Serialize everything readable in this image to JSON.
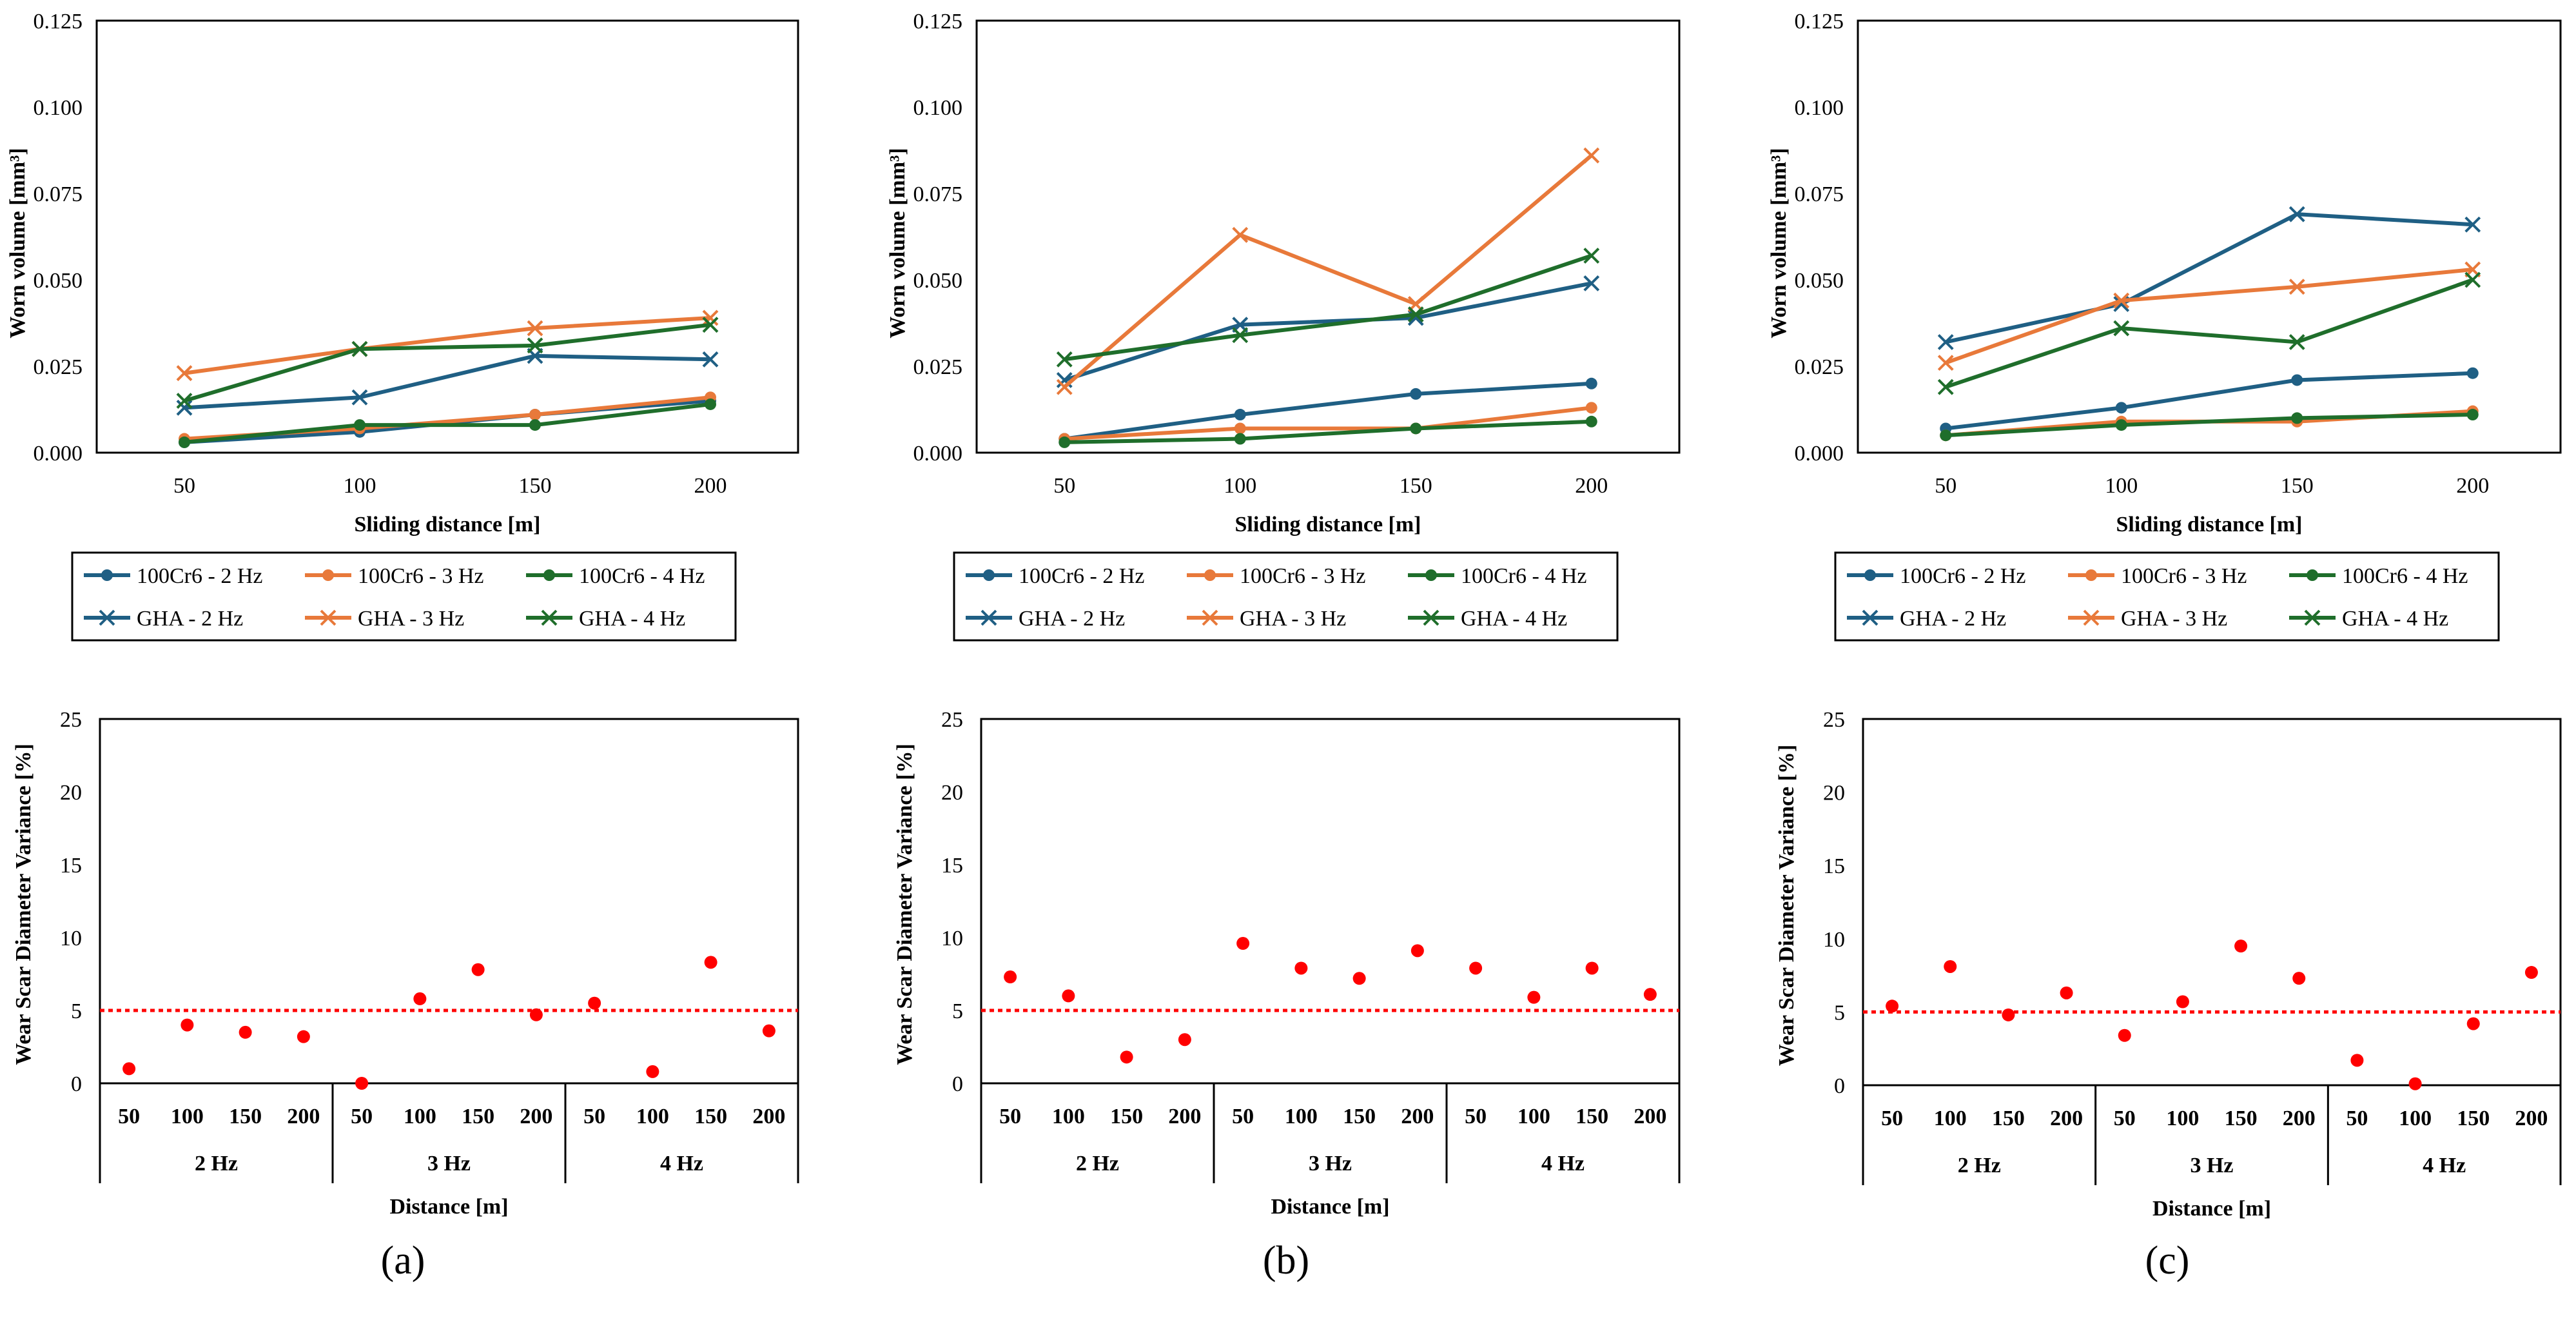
{
  "figure": {
    "panel_labels": [
      "(a)",
      "(b)",
      "(c)"
    ]
  },
  "colors": {
    "2 Hz": "#1f5f84",
    "3 Hz": "#e8793a",
    "4 Hz": "#1f6e2b",
    "scatter_point": "#ff0000",
    "threshold_line": "#ff0000"
  },
  "chart_data": [
    {
      "panel": "a",
      "type": "line",
      "title": "",
      "xlabel": "Sliding distance [m]",
      "ylabel": "Worn volume [mm³]",
      "x": [
        50,
        100,
        150,
        200
      ],
      "ylim": [
        0,
        0.125
      ],
      "yticks": [
        "0.000",
        "0.025",
        "0.050",
        "0.075",
        "0.100",
        "0.125"
      ],
      "series": [
        {
          "name": "100Cr6 - 2 Hz",
          "marker": "dot",
          "freq": "2 Hz",
          "values": [
            0.003,
            0.006,
            0.011,
            0.015
          ]
        },
        {
          "name": "100Cr6 - 3 Hz",
          "marker": "dot",
          "freq": "3 Hz",
          "values": [
            0.004,
            0.007,
            0.011,
            0.016
          ]
        },
        {
          "name": "100Cr6 - 4 Hz",
          "marker": "dot",
          "freq": "4 Hz",
          "values": [
            0.003,
            0.008,
            0.008,
            0.014
          ]
        },
        {
          "name": "GHA - 2 Hz",
          "marker": "x",
          "freq": "2 Hz",
          "values": [
            0.013,
            0.016,
            0.028,
            0.027
          ]
        },
        {
          "name": "GHA - 3 Hz",
          "marker": "x",
          "freq": "3 Hz",
          "values": [
            0.023,
            0.03,
            0.036,
            0.039
          ]
        },
        {
          "name": "GHA - 4 Hz",
          "marker": "x",
          "freq": "4 Hz",
          "values": [
            0.015,
            0.03,
            0.031,
            0.037
          ]
        }
      ]
    },
    {
      "panel": "b",
      "type": "line",
      "title": "",
      "xlabel": "Sliding distance [m]",
      "ylabel": "Worn volume [mm³]",
      "x": [
        50,
        100,
        150,
        200
      ],
      "ylim": [
        0,
        0.125
      ],
      "yticks": [
        "0.000",
        "0.025",
        "0.050",
        "0.075",
        "0.100",
        "0.125"
      ],
      "series": [
        {
          "name": "100Cr6 - 2 Hz",
          "marker": "dot",
          "freq": "2 Hz",
          "values": [
            0.004,
            0.011,
            0.017,
            0.02
          ]
        },
        {
          "name": "100Cr6 - 3 Hz",
          "marker": "dot",
          "freq": "3 Hz",
          "values": [
            0.004,
            0.007,
            0.007,
            0.013
          ]
        },
        {
          "name": "100Cr6 - 4 Hz",
          "marker": "dot",
          "freq": "4 Hz",
          "values": [
            0.003,
            0.004,
            0.007,
            0.009
          ]
        },
        {
          "name": "GHA - 2 Hz",
          "marker": "x",
          "freq": "2 Hz",
          "values": [
            0.021,
            0.037,
            0.039,
            0.049
          ]
        },
        {
          "name": "GHA - 3 Hz",
          "marker": "x",
          "freq": "3 Hz",
          "values": [
            0.019,
            0.063,
            0.043,
            0.086
          ]
        },
        {
          "name": "GHA - 4 Hz",
          "marker": "x",
          "freq": "4 Hz",
          "values": [
            0.027,
            0.034,
            0.04,
            0.057
          ]
        }
      ]
    },
    {
      "panel": "c",
      "type": "line",
      "title": "",
      "xlabel": "Sliding distance [m]",
      "ylabel": "Worn volume [mm³]",
      "x": [
        50,
        100,
        150,
        200
      ],
      "ylim": [
        0,
        0.125
      ],
      "yticks": [
        "0.000",
        "0.025",
        "0.050",
        "0.075",
        "0.100",
        "0.125"
      ],
      "series": [
        {
          "name": "100Cr6 - 2 Hz",
          "marker": "dot",
          "freq": "2 Hz",
          "values": [
            0.007,
            0.013,
            0.021,
            0.023
          ]
        },
        {
          "name": "100Cr6 - 3 Hz",
          "marker": "dot",
          "freq": "3 Hz",
          "values": [
            0.005,
            0.009,
            0.009,
            0.012
          ]
        },
        {
          "name": "100Cr6 - 4 Hz",
          "marker": "dot",
          "freq": "4 Hz",
          "values": [
            0.005,
            0.008,
            0.01,
            0.011
          ]
        },
        {
          "name": "GHA - 2 Hz",
          "marker": "x",
          "freq": "2 Hz",
          "values": [
            0.032,
            0.043,
            0.069,
            0.066
          ]
        },
        {
          "name": "GHA - 3 Hz",
          "marker": "x",
          "freq": "3 Hz",
          "values": [
            0.026,
            0.044,
            0.048,
            0.053
          ]
        },
        {
          "name": "GHA - 4 Hz",
          "marker": "x",
          "freq": "4 Hz",
          "values": [
            0.019,
            0.036,
            0.032,
            0.05
          ]
        }
      ]
    },
    {
      "panel": "a",
      "type": "scatter",
      "title": "",
      "xlabel": "Distance [m]",
      "ylabel": "Wear Scar Diameter Variance [%]",
      "ylim": [
        0,
        25
      ],
      "yticks": [
        "0",
        "5",
        "10",
        "15",
        "20",
        "25"
      ],
      "groups": [
        "2 Hz",
        "3 Hz",
        "4 Hz"
      ],
      "categories": [
        "50",
        "100",
        "150",
        "200"
      ],
      "values": [
        1.0,
        4.0,
        3.5,
        3.2,
        0.0,
        5.8,
        7.8,
        4.7,
        5.5,
        0.8,
        8.3,
        3.6
      ],
      "threshold": 5
    },
    {
      "panel": "b",
      "type": "scatter",
      "title": "",
      "xlabel": "Distance [m]",
      "ylabel": "Wear Scar Diameter Variance [%]",
      "ylim": [
        0,
        25
      ],
      "yticks": [
        "0",
        "5",
        "10",
        "15",
        "20",
        "25"
      ],
      "groups": [
        "2 Hz",
        "3 Hz",
        "4 Hz"
      ],
      "categories": [
        "50",
        "100",
        "150",
        "200"
      ],
      "values": [
        7.3,
        6.0,
        1.8,
        3.0,
        9.6,
        7.9,
        7.2,
        9.1,
        7.9,
        5.9,
        7.9,
        6.1
      ],
      "threshold": 5
    },
    {
      "panel": "c",
      "type": "scatter",
      "title": "",
      "xlabel": "Distance [m]",
      "ylabel": "Wear Scar Diameter Variance [%]",
      "ylim": [
        0,
        25
      ],
      "yticks": [
        "0",
        "5",
        "10",
        "15",
        "20",
        "25"
      ],
      "groups": [
        "2 Hz",
        "3 Hz",
        "4 Hz"
      ],
      "categories": [
        "50",
        "100",
        "150",
        "200"
      ],
      "values": [
        5.4,
        8.1,
        4.8,
        6.3,
        3.4,
        5.7,
        9.5,
        7.3,
        1.7,
        0.1,
        4.2,
        7.7
      ],
      "threshold": 5
    }
  ]
}
